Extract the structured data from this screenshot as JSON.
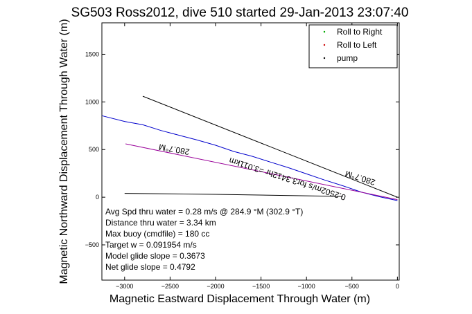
{
  "chart_data": {
    "type": "line",
    "title": "SG503 Ross2012, dive 510 started 29-Jan-2013 23:07:40",
    "xlabel": "Magnetic Eastward Displacement Through Water (m)",
    "ylabel": "Magnetic Northward Displacement Through Water (m)",
    "xlim": [
      -3250,
      20
    ],
    "ylim": [
      -870,
      1830
    ],
    "xticks": [
      -3000,
      -2500,
      -2000,
      -1500,
      -1000,
      -500,
      0
    ],
    "yticks": [
      -500,
      0,
      500,
      1000,
      1500
    ],
    "grid": false,
    "legend_position": "top-right",
    "legend": [
      {
        "name": "Roll to Right",
        "color": "#00aa00",
        "marker": "."
      },
      {
        "name": "Roll to Left",
        "color": "#cc0000",
        "marker": "."
      },
      {
        "name": "pump",
        "color": "#000000",
        "marker": "."
      }
    ],
    "series": [
      {
        "color": "#0000cc",
        "x": [
          -3250,
          -3000,
          -2800,
          -2600,
          -2400,
          -2200,
          -2000,
          -1800,
          -1600,
          -1400,
          -1200,
          -1000,
          -800,
          -600,
          -400,
          -200,
          -100,
          0
        ],
        "y": [
          855,
          795,
          760,
          700,
          650,
          600,
          545,
          480,
          430,
          370,
          310,
          245,
          180,
          120,
          55,
          5,
          -15,
          -35
        ]
      },
      {
        "color": "#990099",
        "x": [
          -2990,
          0
        ],
        "y": [
          560,
          -25
        ]
      },
      {
        "color": "#000000",
        "x": [
          -2800,
          0
        ],
        "y": [
          1060,
          0
        ]
      },
      {
        "color": "#000000",
        "x": [
          -3000,
          -2000,
          -1000,
          -600
        ],
        "y": [
          40,
          30,
          15,
          8
        ]
      }
    ],
    "annotations": [
      {
        "text": "280.7°M",
        "x": -2450,
        "y": 530,
        "rotation": 190
      },
      {
        "text": "280.7°M",
        "x": -400,
        "y": 230,
        "rotation": 198
      },
      {
        "text": "0.2502m/s for3.3412hr =3.011km",
        "x": -1200,
        "y": 220,
        "rotation": 198
      }
    ],
    "stats_box": [
      "Avg Spd thru water = 0.28 m/s @ 284.9 °M (302.9 °T)",
      "Distance thru water = 3.34 km",
      "Max buoy (cmdfile) = 180 cc",
      "Target w = 0.091954 m/s",
      "Model glide slope = 0.3673",
      "Net glide slope = 0.4792"
    ]
  }
}
